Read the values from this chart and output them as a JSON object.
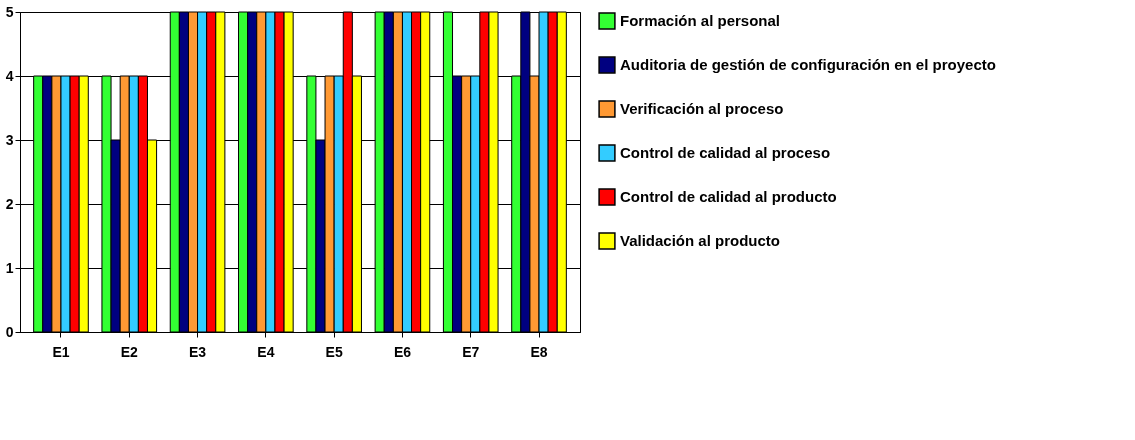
{
  "chart_data": {
    "type": "bar",
    "categories": [
      "E1",
      "E2",
      "E3",
      "E4",
      "E5",
      "E6",
      "E7",
      "E8"
    ],
    "series": [
      {
        "name": "Formación al personal",
        "color": "#33ff33",
        "values": [
          4,
          4,
          5,
          5,
          4,
          5,
          5,
          4
        ]
      },
      {
        "name": "Auditoria de gestión de configuración en el proyecto",
        "color": "#000080",
        "values": [
          4,
          3,
          5,
          5,
          3,
          5,
          4,
          5
        ]
      },
      {
        "name": "Verificación al proceso",
        "color": "#ff9933",
        "values": [
          4,
          4,
          5,
          5,
          4,
          5,
          4,
          4
        ]
      },
      {
        "name": "Control de calidad al proceso",
        "color": "#33ccff",
        "values": [
          4,
          4,
          5,
          5,
          4,
          5,
          4,
          5
        ]
      },
      {
        "name": "Control de calidad al producto",
        "color": "#ff0000",
        "values": [
          4,
          4,
          5,
          5,
          5,
          5,
          5,
          5
        ]
      },
      {
        "name": "Validación al producto",
        "color": "#ffff00",
        "values": [
          4,
          3,
          5,
          5,
          4,
          5,
          5,
          5
        ]
      }
    ],
    "ylim": [
      0,
      5
    ],
    "yticks": [
      0,
      1,
      2,
      3,
      4,
      5
    ],
    "grid": "y",
    "legend": "right"
  }
}
